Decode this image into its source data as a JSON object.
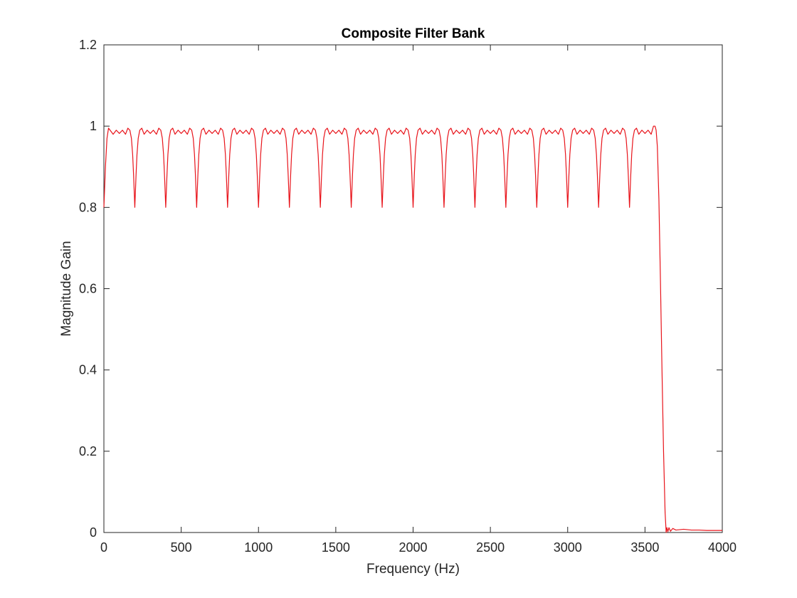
{
  "chart_data": {
    "type": "line",
    "title": "Composite Filter Bank",
    "xlabel": "Frequency (Hz)",
    "ylabel": "Magnitude Gain",
    "xlim": [
      0,
      4000
    ],
    "ylim": [
      0,
      1.2
    ],
    "xticks": [
      0,
      500,
      1000,
      1500,
      2000,
      2500,
      3000,
      3500,
      4000
    ],
    "xtick_labels": [
      "0",
      "500",
      "1000",
      "1500",
      "2000",
      "2500",
      "3000",
      "3500",
      "4000"
    ],
    "yticks": [
      0,
      0.2,
      0.4,
      0.6,
      0.8,
      1.0,
      1.2
    ],
    "ytick_labels": [
      "0",
      "0.2",
      "0.4",
      "0.6",
      "0.8",
      "1",
      "1.2"
    ],
    "grid": false,
    "box": true,
    "series": [
      {
        "color": "#e8141b",
        "x": [
          0,
          10,
          20,
          30,
          40,
          60,
          80,
          100,
          120,
          140,
          155,
          168,
          178,
          186,
          192,
          197,
          200,
          203,
          208,
          214,
          222,
          232,
          245,
          260,
          280,
          300,
          320,
          340,
          355,
          368,
          378,
          386,
          392,
          397,
          400,
          403,
          408,
          414,
          422,
          432,
          445,
          460,
          480,
          500,
          520,
          540,
          555,
          568,
          578,
          586,
          592,
          597,
          600,
          603,
          608,
          614,
          622,
          632,
          645,
          660,
          680,
          700,
          720,
          740,
          755,
          768,
          778,
          786,
          792,
          797,
          800,
          803,
          808,
          814,
          822,
          832,
          845,
          860,
          880,
          900,
          920,
          940,
          955,
          968,
          978,
          986,
          992,
          997,
          1000,
          1003,
          1008,
          1014,
          1022,
          1032,
          1045,
          1060,
          1080,
          1100,
          1120,
          1140,
          1155,
          1168,
          1178,
          1186,
          1192,
          1197,
          1200,
          1203,
          1208,
          1214,
          1222,
          1232,
          1245,
          1260,
          1280,
          1300,
          1320,
          1340,
          1355,
          1368,
          1378,
          1386,
          1392,
          1397,
          1400,
          1403,
          1408,
          1414,
          1422,
          1432,
          1445,
          1460,
          1480,
          1500,
          1520,
          1540,
          1555,
          1568,
          1578,
          1586,
          1592,
          1597,
          1600,
          1603,
          1608,
          1614,
          1622,
          1632,
          1645,
          1660,
          1680,
          1700,
          1720,
          1740,
          1755,
          1768,
          1778,
          1786,
          1792,
          1797,
          1800,
          1803,
          1808,
          1814,
          1822,
          1832,
          1845,
          1860,
          1880,
          1900,
          1920,
          1940,
          1955,
          1968,
          1978,
          1986,
          1992,
          1997,
          2000,
          2003,
          2008,
          2014,
          2022,
          2032,
          2045,
          2060,
          2080,
          2100,
          2120,
          2140,
          2155,
          2168,
          2178,
          2186,
          2192,
          2197,
          2200,
          2203,
          2208,
          2214,
          2222,
          2232,
          2245,
          2260,
          2280,
          2300,
          2320,
          2340,
          2355,
          2368,
          2378,
          2386,
          2392,
          2397,
          2400,
          2403,
          2408,
          2414,
          2422,
          2432,
          2445,
          2460,
          2480,
          2500,
          2520,
          2540,
          2555,
          2568,
          2578,
          2586,
          2592,
          2597,
          2600,
          2603,
          2608,
          2614,
          2622,
          2632,
          2645,
          2660,
          2680,
          2700,
          2720,
          2740,
          2755,
          2768,
          2778,
          2786,
          2792,
          2797,
          2800,
          2803,
          2808,
          2814,
          2822,
          2832,
          2845,
          2860,
          2880,
          2900,
          2920,
          2940,
          2955,
          2968,
          2978,
          2986,
          2992,
          2997,
          3000,
          3003,
          3008,
          3014,
          3022,
          3032,
          3045,
          3060,
          3080,
          3100,
          3120,
          3140,
          3155,
          3168,
          3178,
          3186,
          3192,
          3197,
          3200,
          3203,
          3208,
          3214,
          3222,
          3232,
          3245,
          3260,
          3280,
          3300,
          3320,
          3340,
          3355,
          3368,
          3378,
          3386,
          3392,
          3397,
          3400,
          3403,
          3408,
          3414,
          3422,
          3432,
          3445,
          3460,
          3480,
          3500,
          3520,
          3540,
          3555,
          3565,
          3572,
          3580,
          3590,
          3600,
          3610,
          3620,
          3630,
          3637,
          3642,
          3648,
          3655,
          3665,
          3680,
          3700,
          3750,
          3800,
          3850,
          3900,
          3950,
          4000
        ],
        "y": [
          0.8,
          0.9,
          0.97,
          0.995,
          0.99,
          0.98,
          0.99,
          0.982,
          0.99,
          0.98,
          0.995,
          0.99,
          0.97,
          0.93,
          0.88,
          0.83,
          0.8,
          0.83,
          0.88,
          0.93,
          0.97,
          0.99,
          0.995,
          0.98,
          0.99,
          0.982,
          0.99,
          0.98,
          0.995,
          0.99,
          0.97,
          0.93,
          0.88,
          0.83,
          0.8,
          0.83,
          0.88,
          0.93,
          0.97,
          0.99,
          0.995,
          0.98,
          0.99,
          0.982,
          0.99,
          0.98,
          0.995,
          0.99,
          0.97,
          0.93,
          0.88,
          0.83,
          0.8,
          0.83,
          0.88,
          0.93,
          0.97,
          0.99,
          0.995,
          0.98,
          0.99,
          0.982,
          0.99,
          0.98,
          0.995,
          0.99,
          0.97,
          0.93,
          0.88,
          0.83,
          0.8,
          0.83,
          0.88,
          0.93,
          0.97,
          0.99,
          0.995,
          0.98,
          0.99,
          0.982,
          0.99,
          0.98,
          0.995,
          0.99,
          0.97,
          0.93,
          0.88,
          0.83,
          0.8,
          0.83,
          0.88,
          0.93,
          0.97,
          0.99,
          0.995,
          0.98,
          0.99,
          0.982,
          0.99,
          0.98,
          0.995,
          0.99,
          0.97,
          0.93,
          0.88,
          0.83,
          0.8,
          0.83,
          0.88,
          0.93,
          0.97,
          0.99,
          0.995,
          0.98,
          0.99,
          0.982,
          0.99,
          0.98,
          0.995,
          0.99,
          0.97,
          0.93,
          0.88,
          0.83,
          0.8,
          0.83,
          0.88,
          0.93,
          0.97,
          0.99,
          0.995,
          0.98,
          0.99,
          0.982,
          0.99,
          0.98,
          0.995,
          0.99,
          0.97,
          0.93,
          0.88,
          0.83,
          0.8,
          0.83,
          0.88,
          0.93,
          0.97,
          0.99,
          0.995,
          0.98,
          0.99,
          0.982,
          0.99,
          0.98,
          0.995,
          0.99,
          0.97,
          0.93,
          0.88,
          0.83,
          0.8,
          0.83,
          0.88,
          0.93,
          0.97,
          0.99,
          0.995,
          0.98,
          0.99,
          0.982,
          0.99,
          0.98,
          0.995,
          0.99,
          0.97,
          0.93,
          0.88,
          0.83,
          0.8,
          0.83,
          0.88,
          0.93,
          0.97,
          0.99,
          0.995,
          0.98,
          0.99,
          0.982,
          0.99,
          0.98,
          0.995,
          0.99,
          0.97,
          0.93,
          0.88,
          0.83,
          0.8,
          0.83,
          0.88,
          0.93,
          0.97,
          0.99,
          0.995,
          0.98,
          0.99,
          0.982,
          0.99,
          0.98,
          0.995,
          0.99,
          0.97,
          0.93,
          0.88,
          0.83,
          0.8,
          0.83,
          0.88,
          0.93,
          0.97,
          0.99,
          0.995,
          0.98,
          0.99,
          0.982,
          0.99,
          0.98,
          0.995,
          0.99,
          0.97,
          0.93,
          0.88,
          0.83,
          0.8,
          0.83,
          0.88,
          0.93,
          0.97,
          0.99,
          0.995,
          0.98,
          0.99,
          0.982,
          0.99,
          0.98,
          0.995,
          0.99,
          0.97,
          0.93,
          0.88,
          0.83,
          0.8,
          0.83,
          0.88,
          0.93,
          0.97,
          0.99,
          0.995,
          0.98,
          0.99,
          0.982,
          0.99,
          0.98,
          0.995,
          0.99,
          0.97,
          0.93,
          0.88,
          0.83,
          0.8,
          0.83,
          0.88,
          0.93,
          0.97,
          0.99,
          0.995,
          0.98,
          0.99,
          0.982,
          0.99,
          0.98,
          0.995,
          0.99,
          0.97,
          0.93,
          0.88,
          0.83,
          0.8,
          0.83,
          0.88,
          0.93,
          0.97,
          0.99,
          0.995,
          0.98,
          0.99,
          0.982,
          0.99,
          0.98,
          0.995,
          0.99,
          0.97,
          0.93,
          0.88,
          0.83,
          0.8,
          0.83,
          0.88,
          0.93,
          0.97,
          0.99,
          0.995,
          0.98,
          0.99,
          0.982,
          0.99,
          0.98,
          1.0,
          1.0,
          0.99,
          0.95,
          0.82,
          0.62,
          0.4,
          0.2,
          0.05,
          0.0,
          0.012,
          0.002,
          0.012,
          0.003,
          0.01,
          0.006,
          0.008,
          0.006,
          0.006,
          0.005,
          0.005,
          0.005
        ]
      }
    ]
  }
}
